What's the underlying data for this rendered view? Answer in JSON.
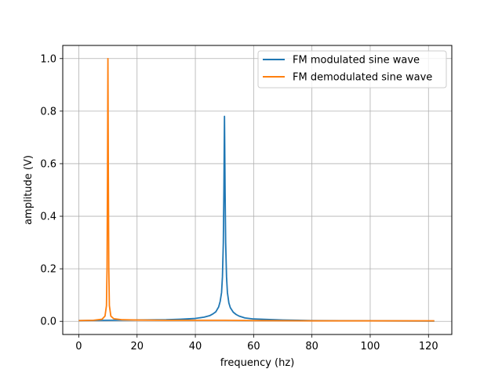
{
  "chart_data": {
    "type": "line",
    "xlabel": "frequency (hz)",
    "ylabel": "amplitude (V)",
    "xlim": [
      -5.5,
      128
    ],
    "ylim": [
      -0.05,
      1.05
    ],
    "x_ticks": [
      0,
      20,
      40,
      60,
      80,
      100,
      120
    ],
    "x_tick_labels": [
      "0",
      "20",
      "40",
      "60",
      "80",
      "100",
      "120"
    ],
    "y_ticks": [
      0.0,
      0.2,
      0.4,
      0.6,
      0.8,
      1.0
    ],
    "y_tick_labels": [
      "0.0",
      "0.2",
      "0.4",
      "0.6",
      "0.8",
      "1.0"
    ],
    "grid": true,
    "legend_position": "top-right",
    "series": [
      {
        "name": "FM modulated sine wave",
        "color": "#1f77b4",
        "x": [
          0,
          10,
          20,
          30,
          35,
          40,
          43,
          45,
          46,
          47,
          48,
          48.5,
          49,
          49.3,
          49.6,
          49.8,
          50,
          50.2,
          50.4,
          50.7,
          51,
          51.5,
          52,
          53,
          54,
          55,
          57,
          60,
          70,
          80,
          100,
          122
        ],
        "values": [
          0.003,
          0.004,
          0.005,
          0.006,
          0.008,
          0.011,
          0.016,
          0.022,
          0.028,
          0.036,
          0.055,
          0.075,
          0.11,
          0.17,
          0.3,
          0.5,
          0.78,
          0.5,
          0.3,
          0.17,
          0.11,
          0.07,
          0.052,
          0.035,
          0.026,
          0.02,
          0.013,
          0.009,
          0.005,
          0.003,
          0.002,
          0.001
        ]
      },
      {
        "name": "FM demodulated sine wave",
        "color": "#ff7f0e",
        "x": [
          0,
          5,
          8,
          9,
          9.5,
          9.7,
          9.85,
          10,
          10.15,
          10.3,
          10.5,
          11,
          12,
          15,
          20,
          30,
          40,
          50,
          60,
          80,
          100,
          122
        ],
        "values": [
          0.003,
          0.004,
          0.008,
          0.02,
          0.06,
          0.2,
          0.55,
          1.0,
          0.55,
          0.2,
          0.06,
          0.02,
          0.01,
          0.006,
          0.005,
          0.004,
          0.004,
          0.004,
          0.003,
          0.002,
          0.002,
          0.002
        ]
      }
    ]
  }
}
